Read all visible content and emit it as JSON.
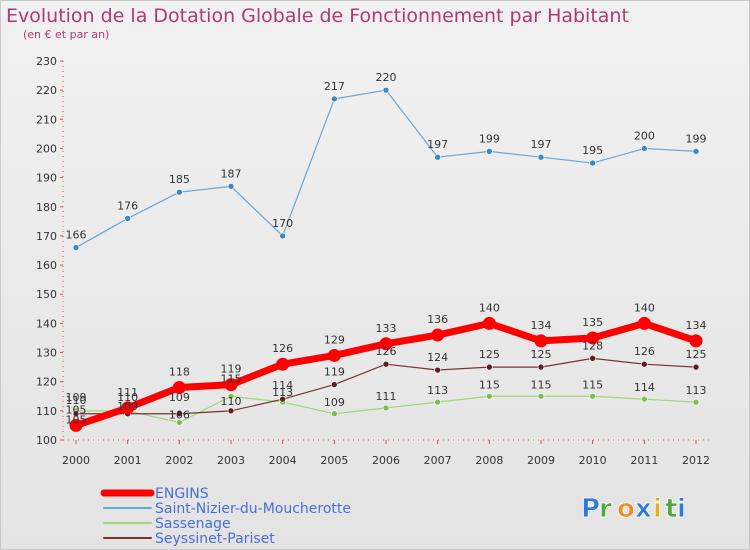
{
  "title": "Evolution de la Dotation Globale de Fonctionnement par Habitant",
  "subtitle": "(en € et par an)",
  "brand": {
    "letters": [
      "P",
      "r",
      "o",
      "x",
      "i",
      "t",
      "i"
    ],
    "colors": [
      "#2e7bd6",
      "#4da83a",
      "#f08a24",
      "#2e7bd6",
      "#e0b020",
      "#4da83a",
      "#2e7bd6"
    ]
  },
  "chart_data": {
    "type": "line",
    "title": "Evolution de la Dotation Globale de Fonctionnement par Habitant",
    "subtitle": "(en € et par an)",
    "xlabel": "",
    "ylabel": "",
    "x": [
      "2000",
      "2001",
      "2002",
      "2003",
      "2004",
      "2005",
      "2006",
      "2007",
      "2008",
      "2009",
      "2010",
      "2011",
      "2012"
    ],
    "ylim": [
      100,
      230
    ],
    "yticks": [
      100,
      110,
      120,
      130,
      140,
      150,
      160,
      170,
      180,
      190,
      200,
      210,
      220,
      230
    ],
    "grid": false,
    "legend_position": "bottom-left",
    "series": [
      {
        "name": "Saint-Nizier-du-Moucherotte",
        "color": "#6aa6d6",
        "dot": "#3d87c4",
        "width": 1.2,
        "r": 3,
        "labels": true,
        "values": [
          166,
          176,
          185,
          187,
          170,
          217,
          220,
          197,
          199,
          197,
          195,
          200,
          199
        ]
      },
      {
        "name": "Sassenage",
        "color": "#9fd77a",
        "dot": "#7cc04a",
        "width": 1.2,
        "r": 3,
        "labels": false,
        "values": [
          110,
          110,
          106,
          115,
          113,
          109,
          111,
          113,
          115,
          115,
          115,
          114,
          113
        ]
      },
      {
        "name": "Seyssinet-Pariset",
        "color": "#7a3232",
        "dot": "#5e1f1f",
        "width": 1.2,
        "r": 3,
        "labels": false,
        "values": [
          109,
          109,
          109,
          110,
          114,
          119,
          126,
          124,
          125,
          125,
          128,
          126,
          125
        ]
      },
      {
        "name": "ENGINS",
        "color": "#ff0000",
        "dot": "#ff0000",
        "width": 7,
        "r": 6.5,
        "labels": true,
        "values": [
          105,
          111,
          118,
          119,
          126,
          129,
          133,
          136,
          140,
          134,
          135,
          140,
          134
        ]
      }
    ],
    "annotations": [
      {
        "x": "2000",
        "text": "109",
        "dx": 0,
        "dy": -13
      },
      {
        "x": "2000",
        "text": "110",
        "dx": 0,
        "dy": -7
      },
      {
        "x": "2000",
        "text": "105",
        "dx": 0,
        "dy": -2
      },
      {
        "x": "2001",
        "text": "110",
        "dx": 0,
        "dy": -10
      },
      {
        "x": "2001",
        "text": "109",
        "dx": 0,
        "dy": -4
      },
      {
        "x": "2002",
        "text": "109",
        "dx": 0,
        "dy": -13
      },
      {
        "x": "2002",
        "text": "106",
        "dx": 0,
        "dy": -4
      },
      {
        "x": "2003",
        "text": "115",
        "dx": 0,
        "dy": -14
      },
      {
        "x": "2003",
        "text": "110",
        "dx": 0,
        "dy": -6
      },
      {
        "x": "2004",
        "text": "114",
        "dx": 0,
        "dy": -10
      },
      {
        "x": "2004",
        "text": "113",
        "dx": 0,
        "dy": -6
      },
      {
        "x": "2005",
        "text": "119",
        "dx": 0,
        "dy": -9
      },
      {
        "x": "2005",
        "text": "109",
        "dx": 0,
        "dy": -8
      },
      {
        "x": "2006",
        "text": "126",
        "dx": 0,
        "dy": -9
      },
      {
        "x": "2006",
        "text": "111",
        "dx": 0,
        "dy": -8
      },
      {
        "x": "2007",
        "text": "124",
        "dx": 0,
        "dy": -9
      },
      {
        "x": "2007",
        "text": "113",
        "dx": 0,
        "dy": -8
      },
      {
        "x": "2008",
        "text": "125",
        "dx": 0,
        "dy": -9
      },
      {
        "x": "2008",
        "text": "115",
        "dx": 0,
        "dy": -8
      },
      {
        "x": "2009",
        "text": "125",
        "dx": 0,
        "dy": -9
      },
      {
        "x": "2009",
        "text": "115",
        "dx": 0,
        "dy": -8
      },
      {
        "x": "2010",
        "text": "128",
        "dx": 0,
        "dy": -9
      },
      {
        "x": "2010",
        "text": "115",
        "dx": 0,
        "dy": -8
      },
      {
        "x": "2011",
        "text": "126",
        "dx": 0,
        "dy": -9
      },
      {
        "x": "2011",
        "text": "114",
        "dx": 0,
        "dy": -8
      },
      {
        "x": "2012",
        "text": "125",
        "dx": 0,
        "dy": -9
      },
      {
        "x": "2012",
        "text": "113",
        "dx": 0,
        "dy": -8
      }
    ],
    "legend": [
      "ENGINS",
      "Saint-Nizier-du-Moucherotte",
      "Sassenage",
      "Seyssinet-Pariset"
    ]
  }
}
